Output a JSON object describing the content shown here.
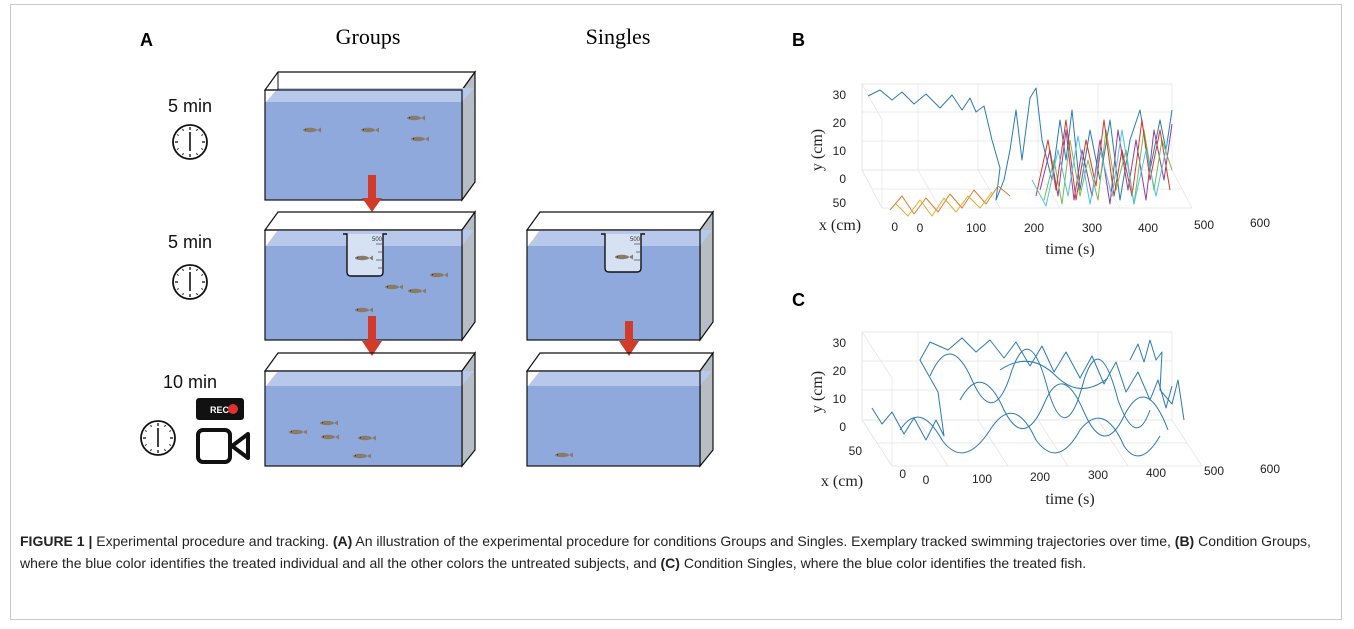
{
  "panels": {
    "A": {
      "letter": "A",
      "col_groups": "Groups",
      "col_singles": "Singles",
      "step1_time": "5 min",
      "step2_time": "5 min",
      "step3_time": "10 min",
      "rec_label": "REC",
      "beaker_mark": "500"
    },
    "B": {
      "letter": "B",
      "ylabel": "y (cm)",
      "xlabel": "x (cm)",
      "tlabel": "time (s)",
      "y_ticks": [
        "30",
        "20",
        "10",
        "0"
      ],
      "x_ticks": [
        "50",
        "0"
      ],
      "t_ticks": [
        "0",
        "100",
        "200",
        "300",
        "400",
        "500",
        "600"
      ]
    },
    "C": {
      "letter": "C",
      "ylabel": "y (cm)",
      "xlabel": "x (cm)",
      "tlabel": "time (s)",
      "y_ticks": [
        "30",
        "20",
        "10",
        "0"
      ],
      "x_ticks": [
        "50",
        "0"
      ],
      "t_ticks": [
        "0",
        "100",
        "200",
        "300",
        "400",
        "500",
        "600"
      ]
    }
  },
  "caption": {
    "lead": "FIGURE 1 |",
    "t1": " Experimental procedure and tracking. ",
    "a": "(A)",
    "t2": " An illustration of the experimental procedure for conditions Groups and Singles. Exemplary tracked swimming trajectories over time, ",
    "b": "(B)",
    "t3": " Condition Groups, where the blue color identifies the treated individual and all the other colors the untreated subjects, and ",
    "c": "(C)",
    "t4": " Condition Singles, where the blue color identifies the treated fish."
  },
  "colors": {
    "water": "#8fa9dc",
    "water_top": "#b8c8ea",
    "arrow": "#d23a2a",
    "treated": "#2a7ab8",
    "rec_dot": "#e03030"
  },
  "icons": [
    "clock-icon",
    "video-camera-icon",
    "fish-icon",
    "beaker-icon",
    "arrow-down-icon"
  ]
}
